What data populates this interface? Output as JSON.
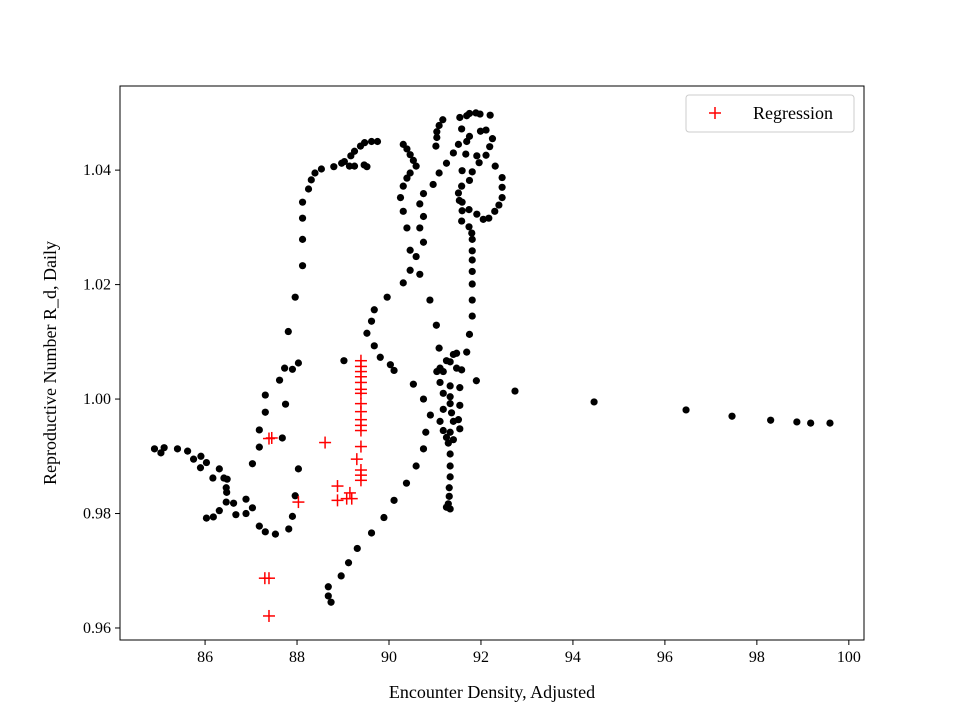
{
  "chart_data": {
    "type": "scatter",
    "title": "",
    "xlabel": "Encounter Density, Adjusted",
    "ylabel": "Reproductive Number R_d, Daily",
    "xlim": [
      84.15,
      100.33
    ],
    "ylim": [
      0.9579,
      1.0547
    ],
    "xticks": [
      86,
      88,
      90,
      92,
      94,
      96,
      98,
      100
    ],
    "xtick_labels": [
      "86",
      "88",
      "90",
      "92",
      "94",
      "96",
      "98",
      "100"
    ],
    "yticks": [
      0.96,
      0.98,
      1.0,
      1.02,
      1.04
    ],
    "ytick_labels": [
      "0.96",
      "0.98",
      "1.00",
      "1.02",
      "1.04"
    ],
    "grid": false,
    "legend": {
      "placement": "top-right",
      "entries": [
        "Regression"
      ]
    },
    "series": [
      {
        "marker": "circle",
        "color": "#000000",
        "points": [
          [
            84.9,
            0.9913
          ],
          [
            85.04,
            0.9906
          ],
          [
            85.11,
            0.9915
          ],
          [
            85.4,
            0.9913
          ],
          [
            85.62,
            0.9909
          ],
          [
            85.75,
            0.9895
          ],
          [
            85.91,
            0.99
          ],
          [
            86.03,
            0.9889
          ],
          [
            85.9,
            0.988
          ],
          [
            86.17,
            0.9862
          ],
          [
            86.31,
            0.9878
          ],
          [
            86.41,
            0.9862
          ],
          [
            86.48,
            0.986
          ],
          [
            86.46,
            0.9845
          ],
          [
            86.47,
            0.9837
          ],
          [
            86.46,
            0.982
          ],
          [
            86.62,
            0.9818
          ],
          [
            86.89,
            0.9825
          ],
          [
            87.03,
            0.981
          ],
          [
            86.89,
            0.98
          ],
          [
            86.67,
            0.9798
          ],
          [
            86.31,
            0.9805
          ],
          [
            86.18,
            0.9794
          ],
          [
            86.03,
            0.9792
          ],
          [
            87.18,
            0.9778
          ],
          [
            87.31,
            0.9768
          ],
          [
            87.53,
            0.9764
          ],
          [
            87.82,
            0.9773
          ],
          [
            87.9,
            0.9795
          ],
          [
            87.96,
            0.9831
          ],
          [
            88.03,
            0.9878
          ],
          [
            87.68,
            0.9932
          ],
          [
            87.18,
            0.9916
          ],
          [
            87.18,
            0.9946
          ],
          [
            87.31,
            0.9977
          ],
          [
            87.31,
            1.0007
          ],
          [
            87.03,
            0.9887
          ],
          [
            87.75,
            0.9991
          ],
          [
            87.62,
            1.0033
          ],
          [
            87.73,
            1.0054
          ],
          [
            87.9,
            1.0052
          ],
          [
            88.03,
            1.0063
          ],
          [
            87.81,
            1.0118
          ],
          [
            87.96,
            1.0178
          ],
          [
            88.12,
            1.0233
          ],
          [
            88.12,
            1.0279
          ],
          [
            88.12,
            1.0316
          ],
          [
            88.12,
            1.0344
          ],
          [
            88.25,
            1.0367
          ],
          [
            88.31,
            1.0383
          ],
          [
            88.39,
            1.0395
          ],
          [
            88.53,
            1.0402
          ],
          [
            88.8,
            1.0406
          ],
          [
            88.97,
            1.0412
          ],
          [
            89.03,
            1.0415
          ],
          [
            89.14,
            1.0407
          ],
          [
            89.25,
            1.0407
          ],
          [
            89.17,
            1.0425
          ],
          [
            89.25,
            1.0433
          ],
          [
            89.38,
            1.0442
          ],
          [
            89.47,
            1.0448
          ],
          [
            89.62,
            1.045
          ],
          [
            89.75,
            1.045
          ],
          [
            89.46,
            1.0409
          ],
          [
            89.52,
            1.0406
          ],
          [
            89.02,
            1.0067
          ],
          [
            89.52,
            1.0115
          ],
          [
            89.62,
            1.0136
          ],
          [
            89.68,
            1.0156
          ],
          [
            89.96,
            1.0178
          ],
          [
            89.68,
            1.0093
          ],
          [
            89.81,
            1.0073
          ],
          [
            90.03,
            1.006
          ],
          [
            90.11,
            1.005
          ],
          [
            90.53,
            1.0026
          ],
          [
            90.75,
            1.0
          ],
          [
            90.9,
            0.9972
          ],
          [
            90.8,
            0.9942
          ],
          [
            90.75,
            0.9913
          ],
          [
            90.59,
            0.9883
          ],
          [
            90.38,
            0.9853
          ],
          [
            90.11,
            0.9823
          ],
          [
            89.89,
            0.9793
          ],
          [
            89.62,
            0.9766
          ],
          [
            89.31,
            0.9739
          ],
          [
            89.12,
            0.9714
          ],
          [
            88.96,
            0.9691
          ],
          [
            88.68,
            0.9672
          ],
          [
            88.68,
            0.9656
          ],
          [
            88.74,
            0.9645
          ],
          [
            90.31,
            1.0445
          ],
          [
            90.39,
            1.0437
          ],
          [
            90.46,
            1.0427
          ],
          [
            90.53,
            1.0417
          ],
          [
            90.59,
            1.0407
          ],
          [
            90.46,
            1.0395
          ],
          [
            90.39,
            1.0386
          ],
          [
            90.31,
            1.0372
          ],
          [
            90.25,
            1.0352
          ],
          [
            90.31,
            1.0328
          ],
          [
            90.39,
            1.0299
          ],
          [
            90.46,
            1.026
          ],
          [
            90.46,
            1.0225
          ],
          [
            90.31,
            1.0203
          ],
          [
            90.67,
            1.0341
          ],
          [
            90.75,
            1.0359
          ],
          [
            90.75,
            1.0319
          ],
          [
            90.67,
            1.0299
          ],
          [
            90.75,
            1.0274
          ],
          [
            90.59,
            1.0249
          ],
          [
            90.67,
            1.0218
          ],
          [
            90.89,
            1.0173
          ],
          [
            91.03,
            1.0129
          ],
          [
            91.09,
            1.0089
          ],
          [
            90.96,
            1.0375
          ],
          [
            91.09,
            1.0395
          ],
          [
            91.25,
            1.0412
          ],
          [
            91.4,
            1.043
          ],
          [
            91.51,
            1.0445
          ],
          [
            91.69,
            1.045
          ],
          [
            91.75,
            1.0459
          ],
          [
            91.67,
            1.0428
          ],
          [
            91.59,
            1.0399
          ],
          [
            91.75,
            1.0382
          ],
          [
            91.81,
            1.0397
          ],
          [
            91.91,
            1.0425
          ],
          [
            91.96,
            1.0413
          ],
          [
            92.11,
            1.0426
          ],
          [
            92.19,
            1.0441
          ],
          [
            92.25,
            1.0455
          ],
          [
            92.11,
            1.047
          ],
          [
            91.99,
            1.0468
          ],
          [
            91.98,
            1.0498
          ],
          [
            92.2,
            1.0496
          ],
          [
            91.89,
            1.05
          ],
          [
            91.75,
            1.0499
          ],
          [
            91.69,
            1.0495
          ],
          [
            91.54,
            1.0492
          ],
          [
            91.58,
            1.0472
          ],
          [
            91.17,
            1.0488
          ],
          [
            91.09,
            1.0478
          ],
          [
            91.04,
            1.0467
          ],
          [
            91.04,
            1.0457
          ],
          [
            91.02,
            1.0442
          ],
          [
            92.31,
            1.0407
          ],
          [
            92.46,
            1.0387
          ],
          [
            92.46,
            1.037
          ],
          [
            92.46,
            1.0352
          ],
          [
            92.39,
            1.0339
          ],
          [
            92.3,
            1.0328
          ],
          [
            92.17,
            1.0316
          ],
          [
            92.05,
            1.0314
          ],
          [
            91.91,
            1.0323
          ],
          [
            91.74,
            1.0331
          ],
          [
            91.59,
            1.0329
          ],
          [
            91.58,
            1.0311
          ],
          [
            91.53,
            1.0347
          ],
          [
            91.51,
            1.036
          ],
          [
            91.58,
            1.0372
          ],
          [
            91.59,
            1.0344
          ],
          [
            91.74,
            1.0301
          ],
          [
            91.8,
            1.029
          ],
          [
            91.81,
            1.0279
          ],
          [
            91.81,
            1.0259
          ],
          [
            91.81,
            1.0243
          ],
          [
            91.81,
            1.0223
          ],
          [
            91.81,
            1.0201
          ],
          [
            91.81,
            1.0173
          ],
          [
            91.81,
            1.0145
          ],
          [
            91.75,
            1.0113
          ],
          [
            91.69,
            1.0082
          ],
          [
            91.9,
            1.0032
          ],
          [
            91.4,
            1.0078
          ],
          [
            91.47,
            1.008
          ],
          [
            91.25,
            1.0067
          ],
          [
            91.33,
            1.0065
          ],
          [
            91.11,
            1.0054
          ],
          [
            91.04,
            1.0048
          ],
          [
            91.18,
            1.0048
          ],
          [
            91.47,
            1.0054
          ],
          [
            91.58,
            1.0051
          ],
          [
            91.11,
            1.0029
          ],
          [
            91.33,
            1.0023
          ],
          [
            91.54,
            1.002
          ],
          [
            91.18,
            1.001
          ],
          [
            91.33,
            1.0004
          ],
          [
            91.33,
            0.9992
          ],
          [
            91.54,
            0.9989
          ],
          [
            91.18,
            0.9982
          ],
          [
            91.36,
            0.9976
          ],
          [
            91.4,
            0.9961
          ],
          [
            91.11,
            0.9961
          ],
          [
            91.51,
            0.9964
          ],
          [
            91.18,
            0.9945
          ],
          [
            91.33,
            0.9942
          ],
          [
            91.54,
            0.9948
          ],
          [
            91.25,
            0.9933
          ],
          [
            91.4,
            0.9929
          ],
          [
            91.29,
            0.9923
          ],
          [
            91.33,
            0.9904
          ],
          [
            91.33,
            0.9883
          ],
          [
            91.33,
            0.9864
          ],
          [
            91.31,
            0.9845
          ],
          [
            91.31,
            0.983
          ],
          [
            91.29,
            0.9817
          ],
          [
            91.25,
            0.9811
          ],
          [
            91.33,
            0.9808
          ],
          [
            92.74,
            1.0014
          ],
          [
            94.46,
            0.9995
          ],
          [
            96.46,
            0.9981
          ],
          [
            97.46,
            0.997
          ],
          [
            98.3,
            0.9963
          ],
          [
            98.87,
            0.996
          ],
          [
            99.17,
            0.9958
          ],
          [
            99.59,
            0.9958
          ]
        ]
      },
      {
        "name": "Regression",
        "marker": "plus",
        "color": "#ff0000",
        "points": [
          [
            87.39,
            0.9931
          ],
          [
            87.45,
            0.9932
          ],
          [
            88.61,
            0.9924
          ],
          [
            89.39,
            1.0067
          ],
          [
            89.39,
            1.0057
          ],
          [
            89.39,
            1.0048
          ],
          [
            89.39,
            1.0039
          ],
          [
            89.39,
            1.0029
          ],
          [
            89.39,
            1.0017
          ],
          [
            89.39,
            1.001
          ],
          [
            89.39,
            0.9992
          ],
          [
            89.39,
            0.9978
          ],
          [
            89.39,
            0.9964
          ],
          [
            89.39,
            0.9954
          ],
          [
            89.39,
            0.9945
          ],
          [
            89.39,
            0.9917
          ],
          [
            89.3,
            0.9895
          ],
          [
            89.39,
            0.9876
          ],
          [
            89.39,
            0.9867
          ],
          [
            89.39,
            0.9858
          ],
          [
            88.88,
            0.9848
          ],
          [
            88.88,
            0.9823
          ],
          [
            89.15,
            0.9836
          ],
          [
            89.08,
            0.9826
          ],
          [
            89.19,
            0.9826
          ],
          [
            88.03,
            0.982
          ],
          [
            87.3,
            0.9687
          ],
          [
            87.39,
            0.9687
          ],
          [
            87.39,
            0.9621
          ]
        ]
      }
    ]
  }
}
